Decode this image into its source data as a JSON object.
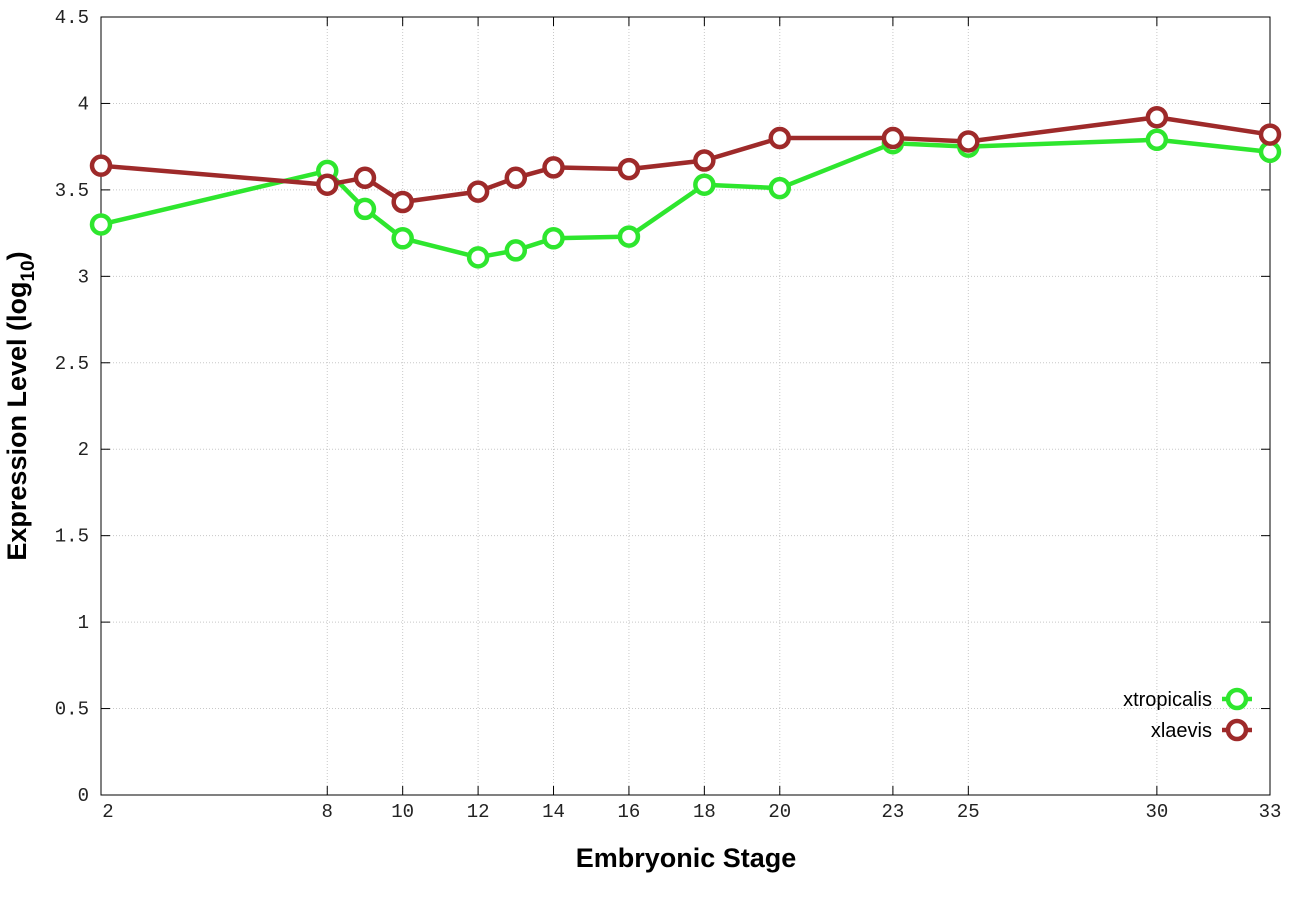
{
  "chart_data": {
    "type": "line",
    "xlabel": "Embryonic Stage",
    "ylabel": {
      "main": "Expression Level (log",
      "sub": "10",
      "end": ")"
    },
    "x": [
      2,
      8,
      9,
      10,
      12,
      13,
      14,
      16,
      18,
      20,
      23,
      25,
      30,
      33
    ],
    "series": [
      {
        "name": "xtropicalis",
        "color": "#2ee62e",
        "values": [
          3.3,
          3.61,
          3.39,
          3.22,
          3.11,
          3.15,
          3.22,
          3.23,
          3.53,
          3.51,
          3.77,
          3.75,
          3.79,
          3.72
        ]
      },
      {
        "name": "xlaevis",
        "color": "#9e2a2a",
        "values": [
          3.64,
          3.53,
          3.57,
          3.43,
          3.49,
          3.57,
          3.63,
          3.62,
          3.67,
          3.8,
          3.8,
          3.78,
          3.92,
          3.82
        ]
      }
    ],
    "xlim": [
      2,
      33
    ],
    "xticks": [
      2,
      8,
      10,
      12,
      14,
      16,
      18,
      20,
      23,
      25,
      30,
      33
    ],
    "ylim": [
      0,
      4.5
    ],
    "yticks": [
      0,
      0.5,
      1,
      1.5,
      2,
      2.5,
      3,
      3.5,
      4,
      4.5
    ],
    "grid": true,
    "legend": "bottom-right"
  }
}
